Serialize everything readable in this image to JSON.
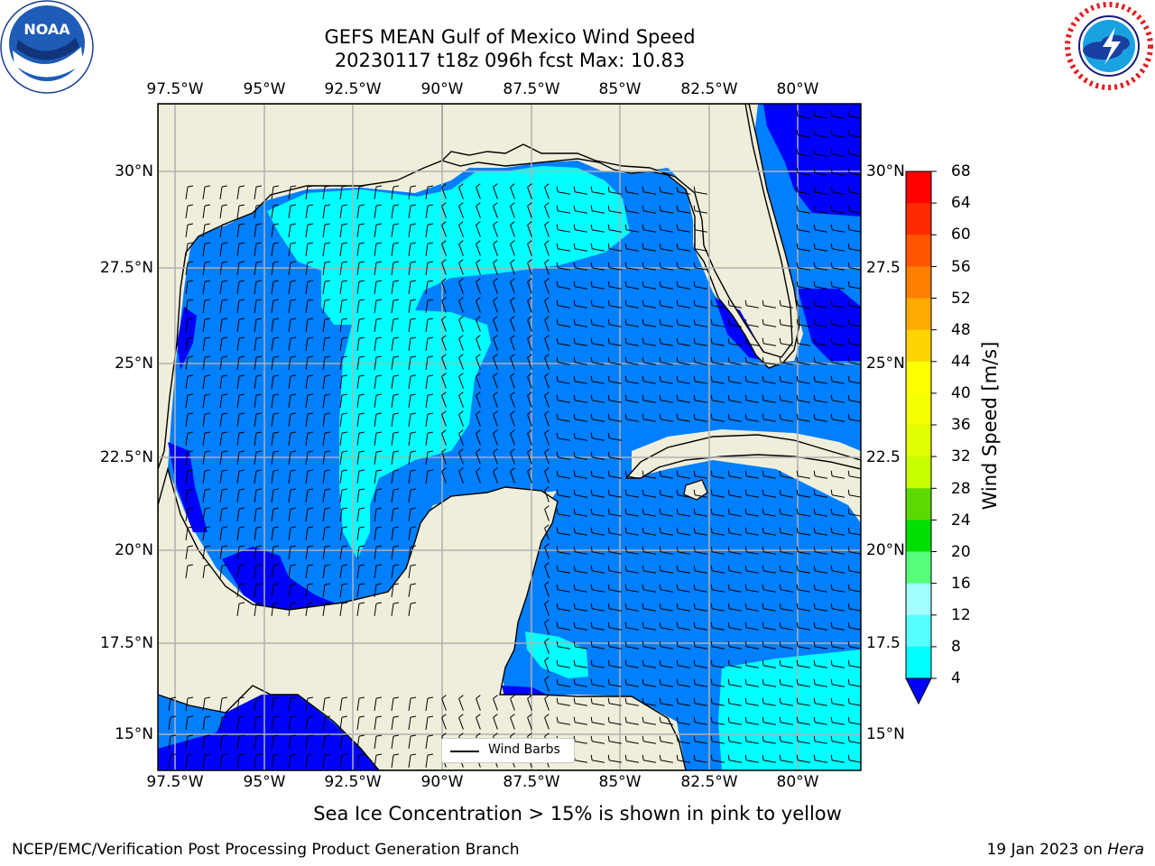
{
  "title_line1": "GEFS MEAN Gulf of Mexico Wind Speed",
  "title_line2": "20230117 t18z 096h fcst   Max: 10.83",
  "lon_labels": [
    "97.5°W",
    "95°W",
    "92.5°W",
    "90°W",
    "87.5°W",
    "85°W",
    "82.5°W",
    "80°W"
  ],
  "lat_labels_left": [
    "30°N",
    "27.5°N",
    "25°N",
    "22.5°N",
    "20°N",
    "17.5°N",
    "15°N"
  ],
  "lat_labels_right": [
    "30°N",
    "27.5",
    "25°N",
    "22.5",
    "20°N",
    "17.5",
    "15°N"
  ],
  "colorbar": {
    "title": "Wind Speed [m/s]",
    "ticks": [
      "68",
      "64",
      "60",
      "56",
      "52",
      "48",
      "44",
      "40",
      "36",
      "32",
      "28",
      "24",
      "20",
      "16",
      "12",
      "8",
      "4"
    ],
    "colors": [
      "#ff0000",
      "#ff2a00",
      "#ff5500",
      "#ff7f00",
      "#ffaa00",
      "#ffd400",
      "#ffff00",
      "#f4ff00",
      "#e0ff00",
      "#c8ff00",
      "#5cd900",
      "#00e000",
      "#55ff78",
      "#a0ffff",
      "#55ffff",
      "#00ffff",
      "#007fff"
    ],
    "under_color": "#0000ff"
  },
  "legend_label": "Wind Barbs",
  "note": "Sea Ice Concentration > 15% is shown in pink to yellow",
  "footer_left": "NCEP/EMC/Verification Post Processing Product Generation Branch",
  "footer_date": "19 Jan 2023 on",
  "footer_machine": "Hera",
  "logos": [
    "noaa-logo",
    "nws-logo"
  ],
  "map_colors": {
    "land": "#efeedb",
    "wind_4_8": "#007fff",
    "wind_8_12": "#00ffff",
    "wind_below_4": "#0000ff"
  }
}
